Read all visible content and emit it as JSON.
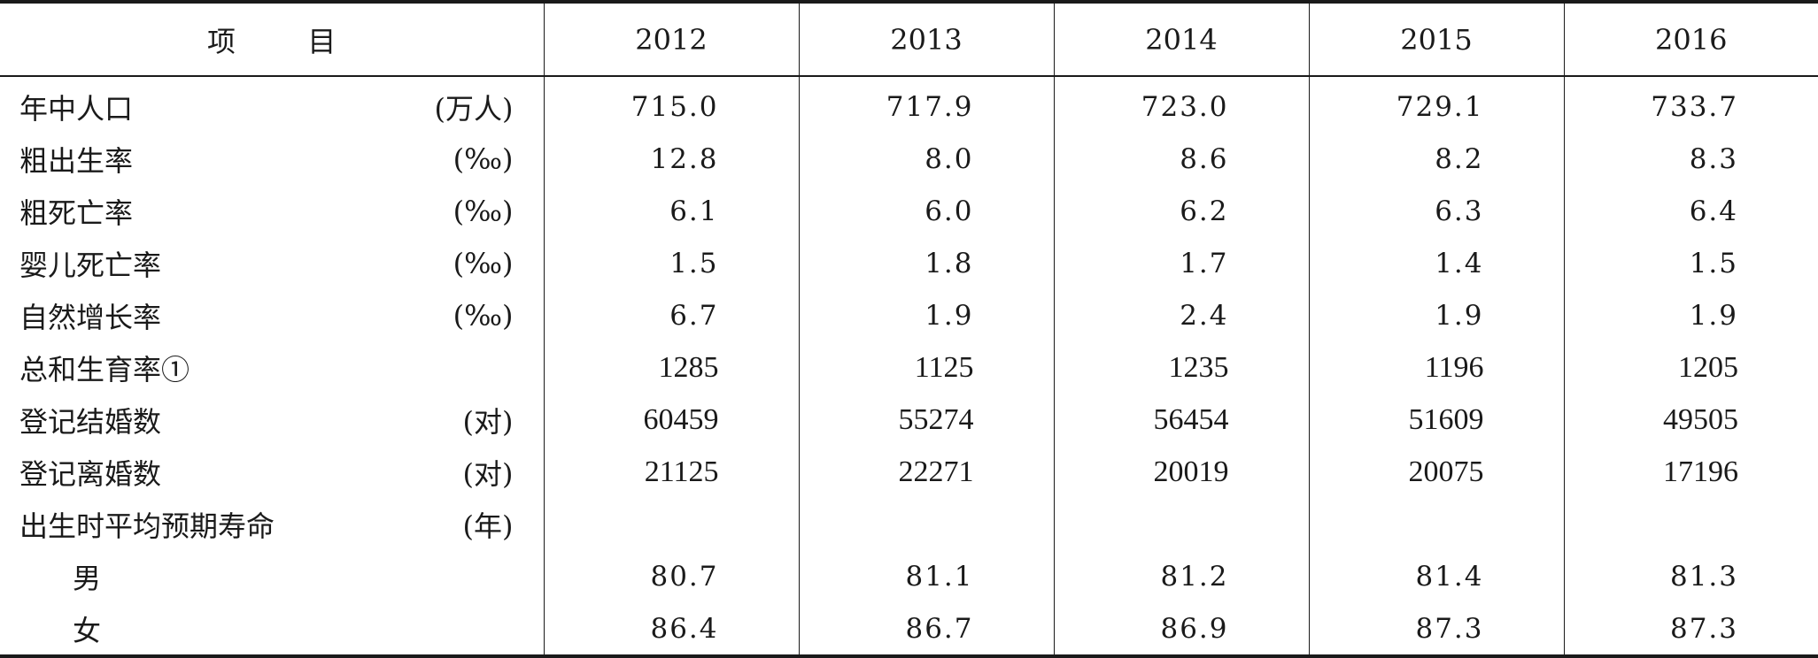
{
  "table": {
    "header": {
      "item_label": "项        目",
      "years": [
        "2012",
        "2013",
        "2014",
        "2015",
        "2016"
      ]
    },
    "rows": [
      {
        "name": "年中人口",
        "unit": "(万人)",
        "values": [
          "715.0",
          "717.9",
          "723.0",
          "729.1",
          "733.7"
        ],
        "int": false,
        "indent": false
      },
      {
        "name": "粗出生率",
        "unit": "(‰)",
        "values": [
          "12.8",
          "8.0",
          "8.6",
          "8.2",
          "8.3"
        ],
        "int": false,
        "indent": false
      },
      {
        "name": "粗死亡率",
        "unit": "(‰)",
        "values": [
          "6.1",
          "6.0",
          "6.2",
          "6.3",
          "6.4"
        ],
        "int": false,
        "indent": false
      },
      {
        "name": "婴儿死亡率",
        "unit": "(‰)",
        "values": [
          "1.5",
          "1.8",
          "1.7",
          "1.4",
          "1.5"
        ],
        "int": false,
        "indent": false
      },
      {
        "name": "自然增长率",
        "unit": "(‰)",
        "values": [
          "6.7",
          "1.9",
          "2.4",
          "1.9",
          "1.9"
        ],
        "int": false,
        "indent": false
      },
      {
        "name": "总和生育率①",
        "unit": "",
        "values": [
          "1285",
          "1125",
          "1235",
          "1196",
          "1205"
        ],
        "int": true,
        "indent": false
      },
      {
        "name": "登记结婚数",
        "unit": "(对)",
        "values": [
          "60459",
          "55274",
          "56454",
          "51609",
          "49505"
        ],
        "int": true,
        "indent": false
      },
      {
        "name": "登记离婚数",
        "unit": "(对)",
        "values": [
          "21125",
          "22271",
          "20019",
          "20075",
          "17196"
        ],
        "int": true,
        "indent": false
      },
      {
        "name": "出生时平均预期寿命",
        "unit": "(年)",
        "values": [
          "",
          "",
          "",
          "",
          ""
        ],
        "int": false,
        "indent": false
      },
      {
        "name": "男",
        "unit": "",
        "values": [
          "80.7",
          "81.1",
          "81.2",
          "81.4",
          "81.3"
        ],
        "int": false,
        "indent": true
      },
      {
        "name": "女",
        "unit": "",
        "values": [
          "86.4",
          "86.7",
          "86.9",
          "87.3",
          "87.3"
        ],
        "int": false,
        "indent": true
      }
    ]
  }
}
